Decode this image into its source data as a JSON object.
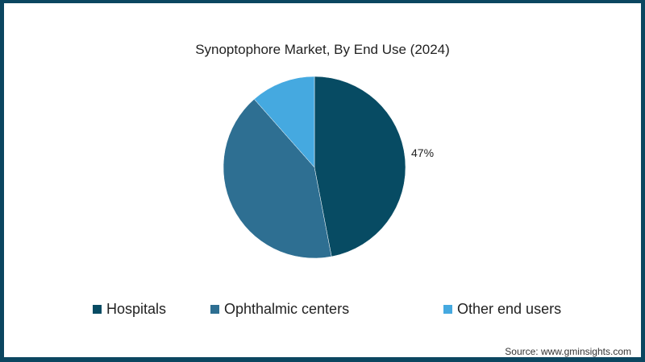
{
  "chart_data": {
    "type": "pie",
    "title": "Synoptophore Market, By End Use (2024)",
    "categories": [
      "Hospitals",
      "Ophthalmic centers",
      "Other end users"
    ],
    "values": [
      47,
      41.5,
      11.5
    ],
    "colors": [
      "#074b63",
      "#2e6f92",
      "#45a9e0"
    ],
    "data_labels": [
      {
        "category": "Hospitals",
        "label": "47%"
      }
    ],
    "start_angle": "12 o'clock, clockwise",
    "legend_position": "bottom"
  },
  "legend": {
    "items": [
      {
        "label": "Hospitals",
        "color": "#074b63"
      },
      {
        "label": "Ophthalmic centers",
        "color": "#2e6f92"
      },
      {
        "label": "Other end users",
        "color": "#45a9e0"
      }
    ]
  },
  "source": "Source: www.gminsights.com",
  "frame_color": "#0b4660"
}
